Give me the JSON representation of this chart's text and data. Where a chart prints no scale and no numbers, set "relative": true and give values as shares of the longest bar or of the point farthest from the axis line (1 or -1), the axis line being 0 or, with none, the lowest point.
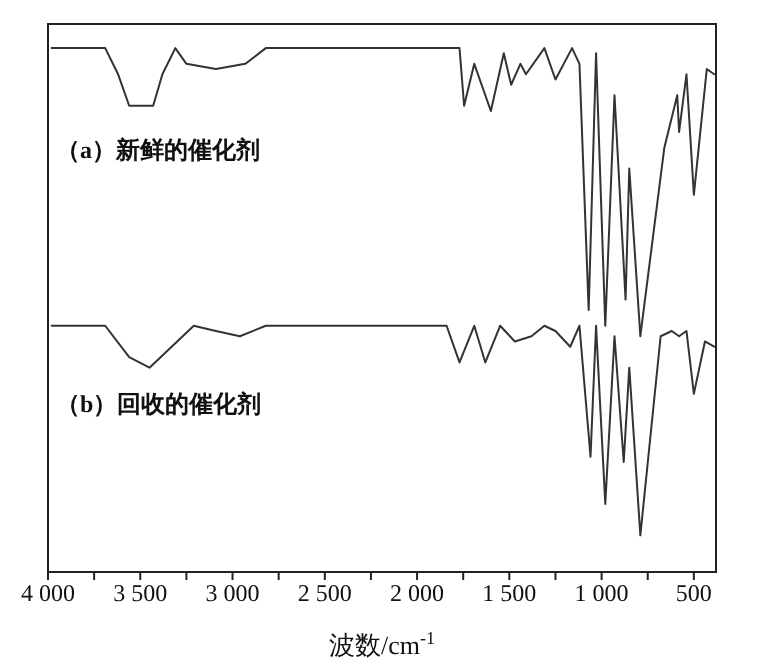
{
  "chart_data": {
    "type": "line",
    "relative": true,
    "xlabel": "波数/cm$^{-1}$",
    "xlim": [
      4000,
      380
    ],
    "xticks": [
      {
        "value": 4000,
        "label": "4 000"
      },
      {
        "value": 3750,
        "label": null
      },
      {
        "value": 3500,
        "label": "3 500"
      },
      {
        "value": 3250,
        "label": null
      },
      {
        "value": 3000,
        "label": "3 000"
      },
      {
        "value": 2750,
        "label": null
      },
      {
        "value": 2500,
        "label": "2 500"
      },
      {
        "value": 2250,
        "label": null
      },
      {
        "value": 2000,
        "label": "2 000"
      },
      {
        "value": 1750,
        "label": null
      },
      {
        "value": 1500,
        "label": "1 500"
      },
      {
        "value": 1250,
        "label": null
      },
      {
        "value": 1000,
        "label": "1 000"
      },
      {
        "value": 750,
        "label": null
      },
      {
        "value": 500,
        "label": "500"
      }
    ],
    "marker": "none",
    "line_style": "solid",
    "annotations": [
      "（a）新鲜的催化剂",
      "（b）回收的催化剂"
    ],
    "series": [
      {
        "color": "#333333",
        "x": [
          3980,
          3690,
          3620,
          3560,
          3430,
          3380,
          3310,
          3250,
          3090,
          2930,
          2820,
          1770,
          1745,
          1690,
          1600,
          1530,
          1490,
          1440,
          1410,
          1310,
          1250,
          1160,
          1120,
          1070,
          1030,
          980,
          930,
          870,
          850,
          790,
          660,
          590,
          580,
          540,
          500,
          430,
          390
        ],
        "values": [
          1.0,
          1.0,
          0.95,
          0.89,
          0.89,
          0.95,
          1.0,
          0.97,
          0.96,
          0.97,
          1.0,
          1.0,
          0.89,
          0.97,
          0.88,
          0.99,
          0.93,
          0.97,
          0.95,
          1.0,
          0.94,
          1.0,
          0.97,
          0.5,
          0.99,
          0.47,
          0.91,
          0.52,
          0.77,
          0.45,
          0.81,
          0.91,
          0.84,
          0.95,
          0.72,
          0.96,
          0.95
        ]
      },
      {
        "color": "#333333",
        "x": [
          3980,
          3690,
          3560,
          3450,
          3330,
          3210,
          3090,
          2960,
          2820,
          1840,
          1770,
          1690,
          1630,
          1550,
          1470,
          1380,
          1310,
          1250,
          1170,
          1120,
          1060,
          1030,
          980,
          930,
          880,
          850,
          790,
          680,
          620,
          580,
          540,
          500,
          440,
          390
        ],
        "values": [
          0.47,
          0.47,
          0.41,
          0.39,
          0.43,
          0.47,
          0.46,
          0.45,
          0.47,
          0.47,
          0.4,
          0.47,
          0.4,
          0.47,
          0.44,
          0.45,
          0.47,
          0.46,
          0.43,
          0.47,
          0.22,
          0.47,
          0.13,
          0.45,
          0.21,
          0.39,
          0.07,
          0.45,
          0.46,
          0.45,
          0.46,
          0.34,
          0.44,
          0.43
        ]
      }
    ]
  }
}
